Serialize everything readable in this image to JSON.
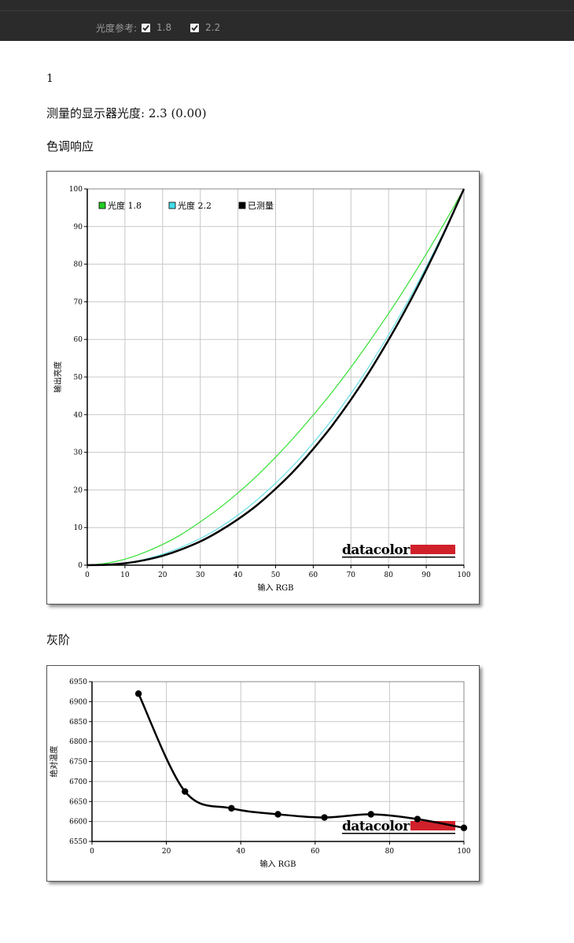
{
  "toolbar": {
    "gamma_reference_label": "光度参考:",
    "options": [
      {
        "label": "1.8",
        "checked": true
      },
      {
        "label": "2.2",
        "checked": true
      }
    ]
  },
  "content": {
    "index_label": "1",
    "measured_gamma": "测量的显示器光度:  2.3 (0.00)",
    "tone_response_heading": "色调响应",
    "grayscale_heading": "灰阶"
  },
  "logo": {
    "text": "datacolor",
    "accent_color": "#d0202a"
  },
  "chart_data": [
    {
      "type": "line",
      "title": "",
      "xlabel": "输入 RGB",
      "ylabel": "输出亮度",
      "xlim": [
        0,
        100
      ],
      "ylim": [
        0,
        100
      ],
      "xticks": [
        0,
        10,
        20,
        30,
        40,
        50,
        60,
        70,
        80,
        90,
        100
      ],
      "yticks": [
        0,
        10,
        20,
        30,
        40,
        50,
        60,
        70,
        80,
        90,
        100
      ],
      "grid": true,
      "legend_position": "top-left",
      "series": [
        {
          "name": "光度 1.8",
          "color": "#33e033",
          "legend_color": "#22cc22",
          "gamma": 1.8,
          "x": [
            0,
            5,
            10,
            15,
            20,
            25,
            30,
            35,
            40,
            45,
            50,
            55,
            60,
            65,
            70,
            75,
            80,
            85,
            90,
            95,
            100
          ],
          "y": [
            0,
            0.5,
            1.6,
            3.3,
            5.5,
            8.2,
            11.5,
            15.1,
            19.2,
            23.7,
            28.7,
            34.1,
            39.9,
            46.0,
            52.6,
            59.6,
            66.9,
            74.6,
            82.7,
            91.2,
            100
          ]
        },
        {
          "name": "光度 2.2",
          "color": "#66e0e8",
          "legend_color": "#44dde8",
          "gamma": 2.2,
          "x": [
            0,
            5,
            10,
            15,
            20,
            25,
            30,
            35,
            40,
            45,
            50,
            55,
            60,
            65,
            70,
            75,
            80,
            85,
            90,
            95,
            100
          ],
          "y": [
            0,
            0.1,
            0.6,
            1.5,
            2.9,
            4.8,
            7.1,
            9.9,
            13.3,
            17.3,
            21.8,
            26.8,
            32.5,
            38.7,
            45.6,
            53.1,
            61.2,
            69.9,
            79.3,
            89.3,
            100
          ]
        },
        {
          "name": "已测量",
          "color": "#000000",
          "legend_color": "#000000",
          "gamma": 2.3,
          "x": [
            0,
            5,
            10,
            15,
            20,
            25,
            30,
            35,
            40,
            45,
            50,
            55,
            60,
            65,
            70,
            75,
            80,
            85,
            90,
            95,
            100
          ],
          "y": [
            0,
            0.1,
            0.5,
            1.3,
            2.5,
            4.2,
            6.3,
            9.0,
            12.2,
            15.9,
            20.3,
            25.2,
            30.9,
            37.1,
            44.0,
            51.6,
            59.9,
            68.8,
            78.5,
            88.9,
            100
          ]
        }
      ]
    },
    {
      "type": "line",
      "title": "",
      "xlabel": "输入 RGB",
      "ylabel": "绝对温度",
      "xlim": [
        0,
        100
      ],
      "ylim": [
        6550,
        6950
      ],
      "xticks": [
        0,
        20,
        40,
        60,
        80,
        100
      ],
      "yticks": [
        6550,
        6600,
        6650,
        6700,
        6750,
        6800,
        6850,
        6900,
        6950
      ],
      "grid": true,
      "series": [
        {
          "name": "",
          "color": "#000000",
          "x": [
            12.5,
            25,
            37.5,
            50,
            62.5,
            75,
            87.5,
            100
          ],
          "y": [
            6920,
            6675,
            6633,
            6618,
            6610,
            6618,
            6606,
            6584
          ]
        }
      ]
    }
  ]
}
